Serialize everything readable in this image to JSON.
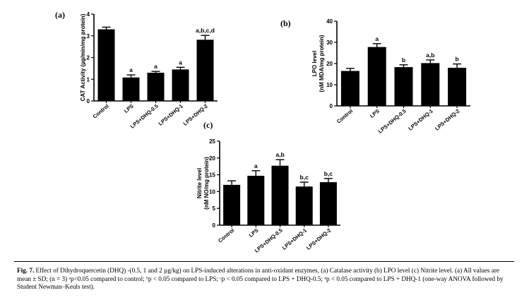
{
  "colors": {
    "bar": "#000000",
    "axis": "#000000",
    "background": "#ffffff"
  },
  "chart_data": [
    {
      "panel": "(a)",
      "type": "bar",
      "ylabel": "CAT Activity (µg/min/mg protein)",
      "ylim": [
        0,
        4
      ],
      "yticks": [
        "0",
        "1",
        "2",
        "3",
        "4"
      ],
      "categories": [
        "Control",
        "LPS",
        "LPS+DHQ-0.5",
        "LPS+DHQ-1",
        "LPS+DHQ-2"
      ],
      "values": [
        3.3,
        1.08,
        1.3,
        1.45,
        2.82
      ],
      "errors": [
        0.1,
        0.12,
        0.06,
        0.1,
        0.2
      ],
      "annotations": [
        "",
        "a",
        "a",
        "a",
        "a,b,c,d"
      ],
      "grid": false
    },
    {
      "panel": "(b)",
      "type": "bar",
      "ylabel": "LPO level (nM MDA/mg protein)",
      "ylim": [
        0,
        40
      ],
      "yticks": [
        "0",
        "10",
        "20",
        "30",
        "40"
      ],
      "categories": [
        "Control",
        "LPS",
        "LPS+DHQ-0.5",
        "LPS+DHQ-1",
        "LPS+DHQ-2"
      ],
      "values": [
        16.5,
        27.8,
        18.3,
        20.2,
        18.0
      ],
      "errors": [
        1.2,
        1.6,
        1.1,
        1.5,
        1.8
      ],
      "annotations": [
        "",
        "a",
        "b",
        "a,b",
        "b"
      ],
      "grid": false
    },
    {
      "panel": "(c)",
      "type": "bar",
      "ylabel": "Nitrite level (nM NO/mg protein)",
      "ylim": [
        0,
        25
      ],
      "yticks": [
        "0",
        "5",
        "10",
        "15",
        "20",
        "25"
      ],
      "categories": [
        "Control",
        "LPS",
        "LPS+DHQ-0.5",
        "LPS+DHQ-1",
        "LPS+DHQ-2"
      ],
      "values": [
        12.0,
        14.7,
        17.7,
        11.5,
        12.8
      ],
      "errors": [
        1.2,
        1.5,
        1.8,
        1.3,
        1.1
      ],
      "annotations": [
        "",
        "a",
        "a,b",
        "b,c",
        "b,c"
      ],
      "grid": false
    }
  ],
  "caption": {
    "label": "Fig. 7.",
    "text": "Effect of Dihydroquercetin (DHQ) -(0.5, 1 and 2 µg/kg) on LPS-induced alterations in anti-oxidant enzymes, (a) Catalase activity (b) LPO level (c) Nitrite level. (a) All values are mean ± SD; (n = 3) ᵃp<0.05 compared to control; ᵇp < 0.05 compared to LPS; ᶜp < 0.05 compared to LPS + DHQ-0.5; ᵈp < 0.05 compared to LPS + DHQ-1 (one-way ANOVA followed by Student Newman–Keuls test)."
  }
}
